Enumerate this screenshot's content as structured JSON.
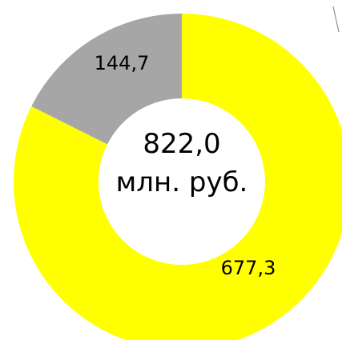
{
  "chart_data": {
    "type": "pie",
    "categories": [
      "",
      ""
    ],
    "values": [
      677.3,
      144.7
    ],
    "value_labels": [
      "677,3",
      "144,7"
    ],
    "colors": [
      "#ffff00",
      "#a6a6a6"
    ],
    "total_value": "822,0",
    "total_unit": "млн. руб."
  }
}
